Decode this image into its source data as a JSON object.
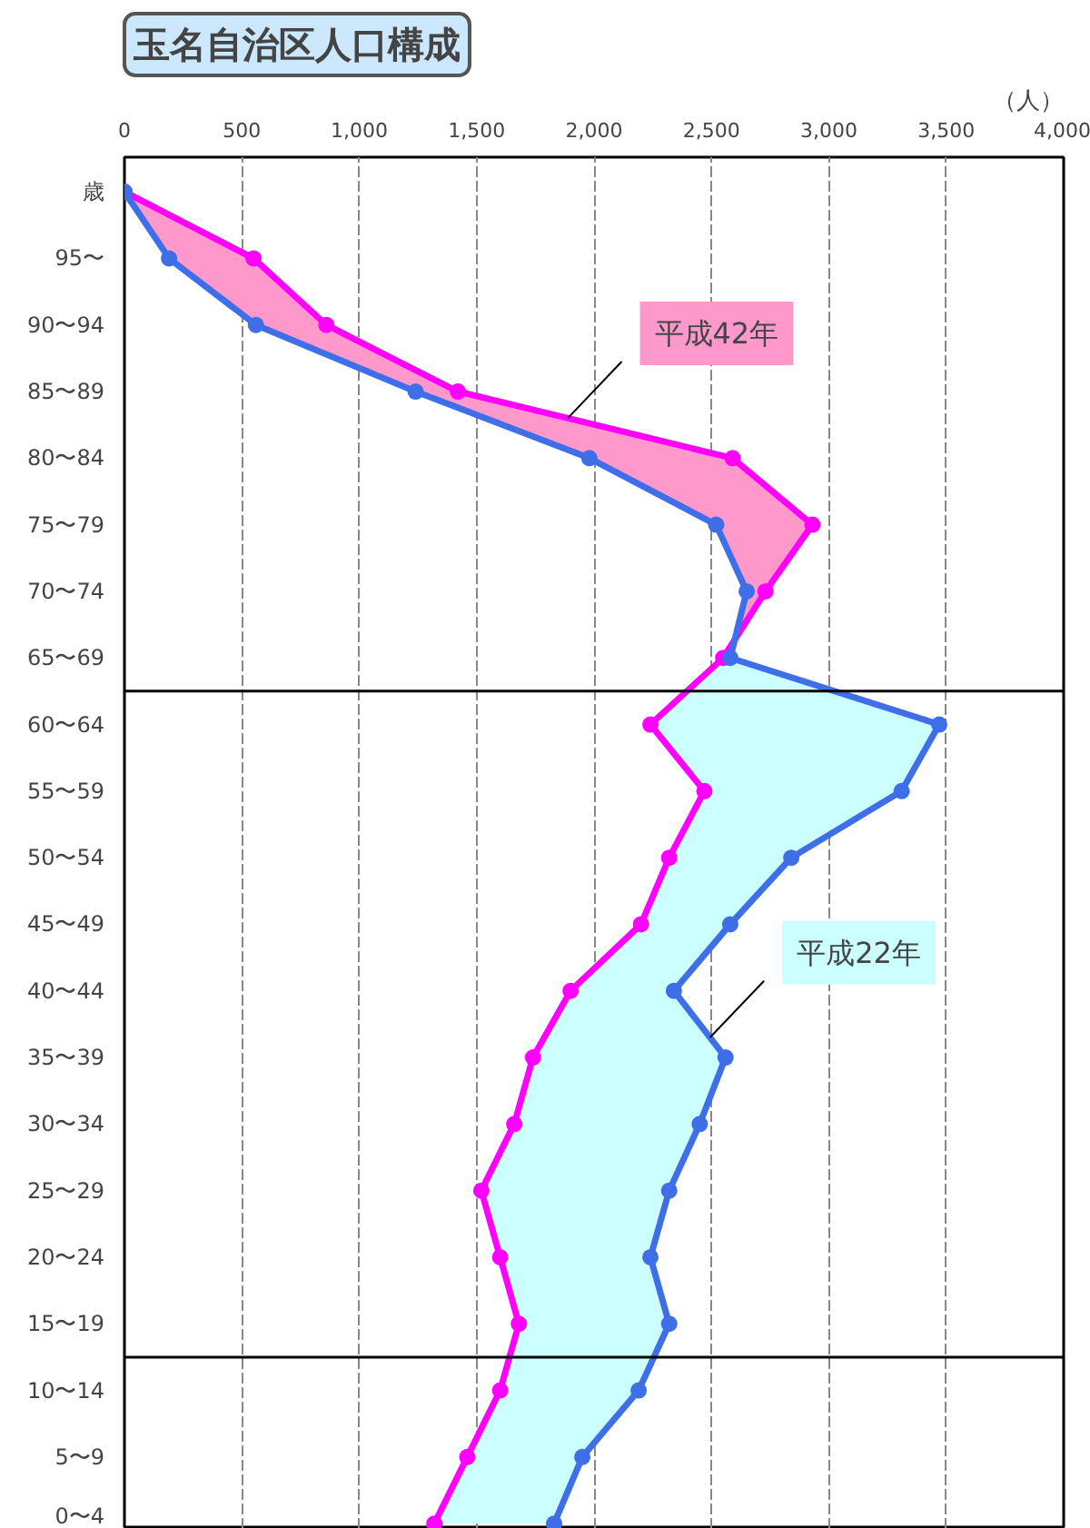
{
  "chart_data": {
    "type": "line",
    "orientation": "horizontal",
    "title": "玉名自治区人口構成",
    "xlabel": "（人）",
    "ylabel": "歳",
    "categories": [
      null,
      "95〜",
      "90〜94",
      "85〜89",
      "80〜84",
      "75〜79",
      "70〜74",
      "65〜69",
      "60〜64",
      "55〜59",
      "50〜54",
      "45〜49",
      "40〜44",
      "35〜39",
      "30〜34",
      "25〜29",
      "20〜24",
      "15〜19",
      "10〜14",
      "5〜9",
      "0〜4"
    ],
    "series": [
      {
        "name": "平成42年",
        "color": "#ff00ff",
        "values": [
          0,
          550,
          860,
          1420,
          2590,
          2930,
          2730,
          2550,
          2240,
          2470,
          2320,
          2200,
          1900,
          1740,
          1660,
          1520,
          1600,
          1680,
          1600,
          1460,
          1320
        ]
      },
      {
        "name": "平成22年",
        "color": "#3f6fe8",
        "values": [
          0,
          190,
          560,
          1240,
          1980,
          2520,
          2650,
          2580,
          3470,
          3310,
          2840,
          2580,
          2340,
          2560,
          2450,
          2320,
          2240,
          2320,
          2190,
          1950,
          1830
        ]
      }
    ],
    "xlim": [
      0,
      4000
    ],
    "xticks": [
      0,
      500,
      {
        "value": 1000,
        "label": "1,000"
      },
      {
        "value": 1500,
        "label": "1,500"
      },
      {
        "value": 2000,
        "label": "2,000"
      },
      {
        "value": 2500,
        "label": "2,500"
      },
      {
        "value": 3000,
        "label": "3,000"
      },
      {
        "value": 3500,
        "label": "3,500"
      },
      {
        "value": 4000,
        "label": "4,000"
      }
    ],
    "grid": "x",
    "marker": "circle",
    "line_style": "solid"
  }
}
